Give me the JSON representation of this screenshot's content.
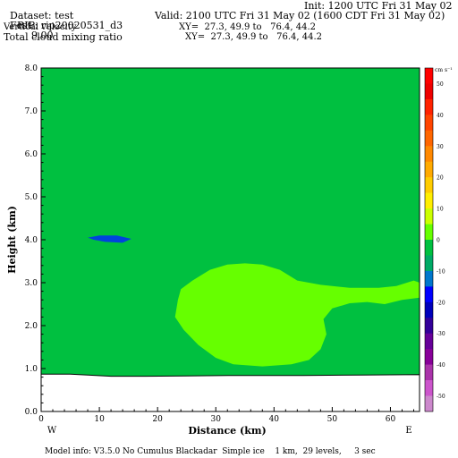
{
  "header": {
    "dataset": "Dataset: test",
    "rip": "RIP: rip20020531_d3",
    "init": "Init: 1200 UTC Fri 31 May 02",
    "fcst_label": "Fcst:",
    "fcst_value": "9.00",
    "valid": "Valid: 2100 UTC Fri 31 May 02 (1600 CDT Fri 31 May 02)",
    "field1": "Vertical velocity",
    "xy1": "XY=  27.3, 49.9 to   76.4, 44.2",
    "field2": "Total cloud mixing ratio",
    "xy2": "XY=  27.3, 49.9 to   76.4, 44.2"
  },
  "footer": {
    "model_info": "Model info: V3.5.0 No Cumulus Blackadar  Simple ice    1 km,  29 levels,     3 sec"
  },
  "colors": {
    "main_fill": "#00c040",
    "cloud_fill": "#66ff00",
    "updraft_fill": "#0044dd",
    "ground_fill": "#ffffff"
  },
  "chart_data": {
    "type": "heatmap",
    "xlabel": "Distance (km)",
    "ylabel": "Height (km)",
    "xlim": [
      0,
      65
    ],
    "ylim": [
      0,
      8
    ],
    "xticks": [
      0,
      10,
      20,
      30,
      40,
      50,
      60
    ],
    "yticks": [
      "0.0",
      "1.0",
      "2.0",
      "3.0",
      "4.0",
      "5.0",
      "6.0",
      "7.0",
      "8.0"
    ],
    "x_end_labels": {
      "left": "W",
      "right": "E"
    },
    "colorbar": {
      "units": "cm s⁻¹",
      "colors": [
        "#ff0000",
        "#ee0000",
        "#ff2200",
        "#ff4400",
        "#ff6600",
        "#ff8800",
        "#ffaa00",
        "#ffcc00",
        "#ffee00",
        "#ccff00",
        "#66ff00",
        "#00c040",
        "#00aa66",
        "#0077cc",
        "#0000ff",
        "#0000bb",
        "#330099",
        "#660099",
        "#880099",
        "#aa33aa",
        "#cc55cc",
        "#cc88cc"
      ],
      "labels": [
        "50",
        "40",
        "30",
        "20",
        "10",
        "0",
        "-10",
        "-20",
        "-30",
        "-40",
        "-50"
      ]
    },
    "regions": [
      {
        "name": "cloud",
        "color": "#66ff00",
        "outline": [
          [
            23.5,
            2.6
          ],
          [
            24,
            2.85
          ],
          [
            26,
            3.05
          ],
          [
            29,
            3.3
          ],
          [
            32,
            3.42
          ],
          [
            35,
            3.45
          ],
          [
            38,
            3.42
          ],
          [
            41,
            3.3
          ],
          [
            44,
            3.05
          ],
          [
            48,
            2.95
          ],
          [
            53,
            2.88
          ],
          [
            58,
            2.88
          ],
          [
            61,
            2.92
          ],
          [
            64,
            3.05
          ],
          [
            65,
            3.0
          ],
          [
            65,
            2.65
          ],
          [
            62,
            2.6
          ],
          [
            59,
            2.5
          ],
          [
            56,
            2.55
          ],
          [
            53,
            2.52
          ],
          [
            50,
            2.4
          ],
          [
            48.5,
            2.15
          ],
          [
            49,
            1.8
          ],
          [
            48,
            1.45
          ],
          [
            46,
            1.2
          ],
          [
            43,
            1.1
          ],
          [
            38,
            1.05
          ],
          [
            33,
            1.1
          ],
          [
            30,
            1.25
          ],
          [
            27,
            1.55
          ],
          [
            24.5,
            1.9
          ],
          [
            23,
            2.2
          ]
        ]
      },
      {
        "name": "updraft",
        "color": "#0044dd",
        "outline": [
          [
            8,
            4.05
          ],
          [
            10,
            4.1
          ],
          [
            13,
            4.1
          ],
          [
            15.5,
            4.02
          ],
          [
            14,
            3.93
          ],
          [
            11,
            3.95
          ],
          [
            9,
            4.0
          ]
        ]
      },
      {
        "name": "ground",
        "color": "#ffffff",
        "outline": [
          [
            0,
            0.87
          ],
          [
            5,
            0.87
          ],
          [
            8,
            0.85
          ],
          [
            12,
            0.82
          ],
          [
            18,
            0.82
          ],
          [
            25,
            0.83
          ],
          [
            33,
            0.84
          ],
          [
            45,
            0.84
          ],
          [
            55,
            0.85
          ],
          [
            65,
            0.86
          ],
          [
            65,
            0
          ],
          [
            0,
            0
          ]
        ]
      }
    ]
  }
}
